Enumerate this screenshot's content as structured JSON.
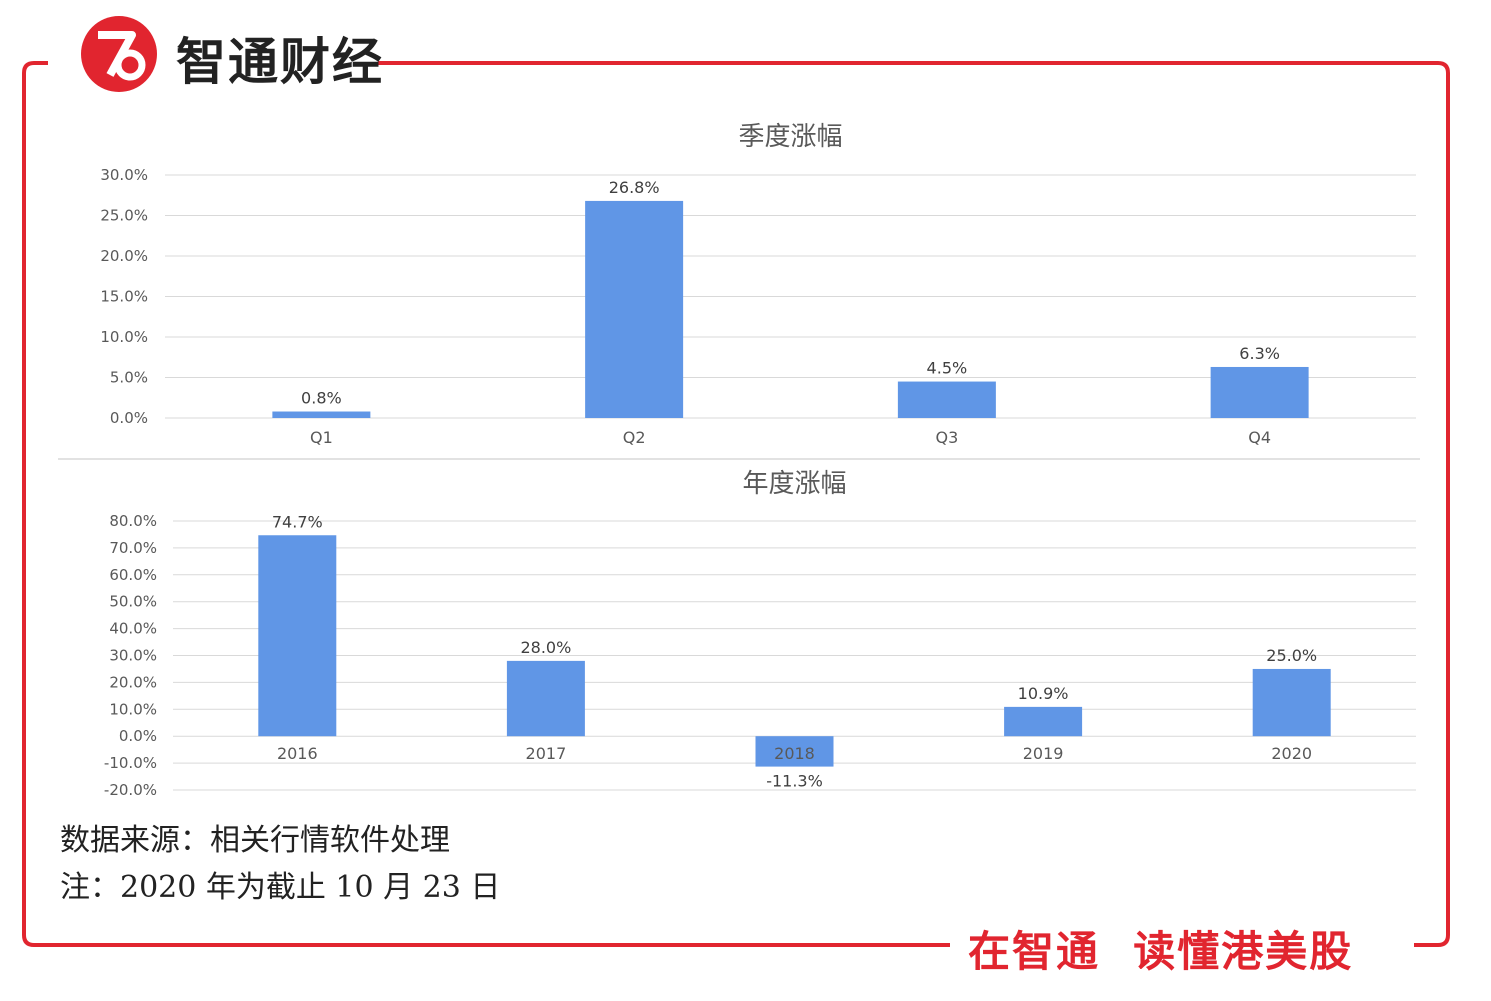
{
  "brand": {
    "name": "智通财经",
    "logo_icon": "zhitong-logo-icon",
    "accent_color": "#e1252f"
  },
  "slogan": "在智通  读懂港美股",
  "notes": {
    "source": "数据来源：相关行情软件处理",
    "note": "注：2020 年为截止 10 月 23 日"
  },
  "chart_data": [
    {
      "type": "bar",
      "title": "季度涨幅",
      "categories": [
        "Q1",
        "Q2",
        "Q3",
        "Q4"
      ],
      "values": [
        0.8,
        26.8,
        4.5,
        6.3
      ],
      "labels": [
        "0.8%",
        "26.8%",
        "4.5%",
        "6.3%"
      ],
      "ylim": [
        0,
        30
      ],
      "yticks": [
        "0.0%",
        "5.0%",
        "10.0%",
        "15.0%",
        "20.0%",
        "25.0%",
        "30.0%"
      ],
      "grid": true,
      "bar_color": "#6096e6"
    },
    {
      "type": "bar",
      "title": "年度涨幅",
      "categories": [
        "2016",
        "2017",
        "2018",
        "2019",
        "2020"
      ],
      "values": [
        74.7,
        28.0,
        -11.3,
        10.9,
        25.0
      ],
      "labels": [
        "74.7%",
        "28.0%",
        "-11.3%",
        "10.9%",
        "25.0%"
      ],
      "ylim": [
        -20,
        80
      ],
      "yticks": [
        "-20.0%",
        "-10.0%",
        "0.0%",
        "10.0%",
        "20.0%",
        "30.0%",
        "40.0%",
        "50.0%",
        "60.0%",
        "70.0%",
        "80.0%"
      ],
      "grid": true,
      "bar_color": "#6096e6"
    }
  ]
}
